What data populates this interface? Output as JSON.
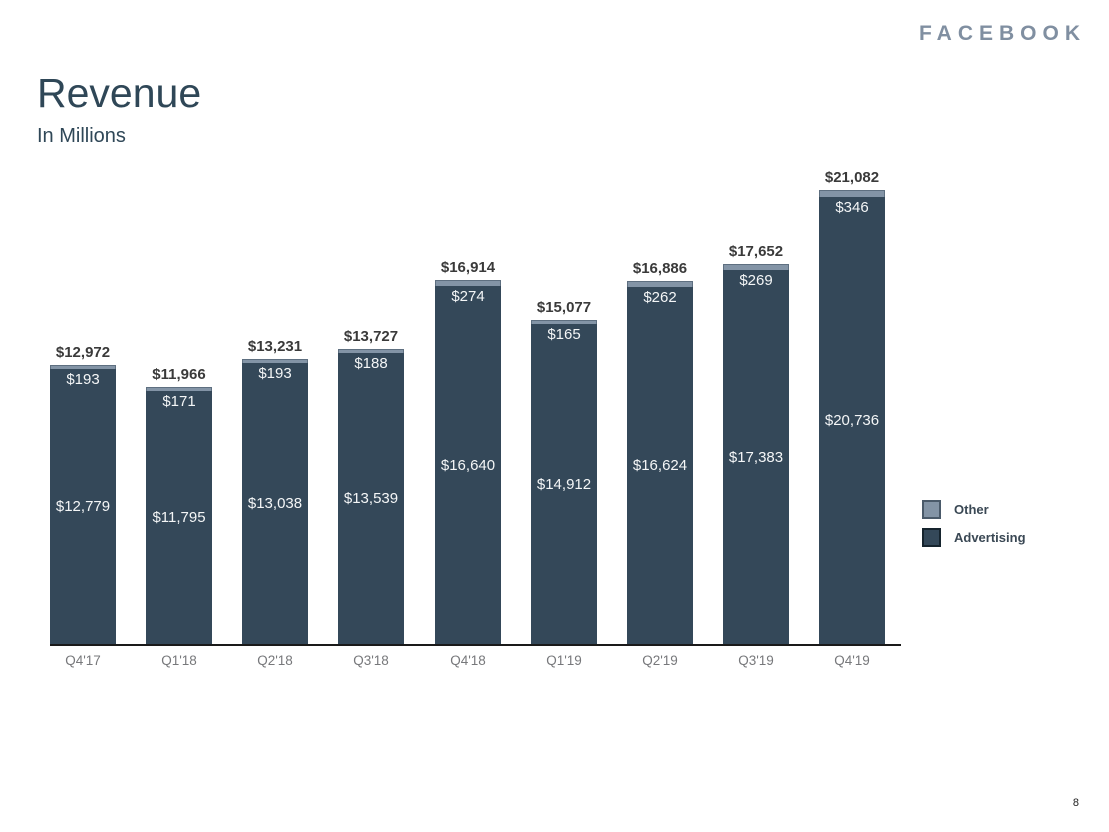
{
  "logo": "FACEBOOK",
  "header": {
    "title": "Revenue",
    "subtitle": "In Millions"
  },
  "page_number": "8",
  "colors": {
    "advertising": "#344859",
    "other": "#8394A6",
    "other_border": "#5E6F80",
    "advertising_swatch_border": "#16242E",
    "other_swatch_border": "#4A5A6A",
    "total_label_text": "#3A3A3A",
    "inside_label_text": "#F4F6F7",
    "axis_line": "#1A1A1A",
    "axis_label_text": "#77787B",
    "title_text": "#2F4757",
    "logo_text": "#808FA1"
  },
  "legend": [
    {
      "label": "Other",
      "color": "#8394A6",
      "border": "#4A5A6A"
    },
    {
      "label": "Advertising",
      "color": "#344859",
      "border": "#16242E"
    }
  ],
  "chart_data": {
    "type": "bar",
    "stacked": true,
    "title": "Revenue",
    "subtitle": "In Millions",
    "unit": "USD millions",
    "categories": [
      "Q4'17",
      "Q1'18",
      "Q2'18",
      "Q3'18",
      "Q4'18",
      "Q1'19",
      "Q2'19",
      "Q3'19",
      "Q4'19"
    ],
    "series": [
      {
        "name": "Advertising",
        "values": [
          12779,
          11795,
          13038,
          13539,
          16640,
          14912,
          16624,
          17383,
          20736
        ]
      },
      {
        "name": "Other",
        "values": [
          193,
          171,
          193,
          188,
          274,
          165,
          262,
          269,
          346
        ]
      }
    ],
    "totals": [
      12972,
      11966,
      13231,
      13727,
      16914,
      15077,
      16886,
      17652,
      21082
    ],
    "total_labels": [
      "$12,972",
      "$11,966",
      "$13,231",
      "$13,727",
      "$16,914",
      "$15,077",
      "$16,886",
      "$17,652",
      "$21,082"
    ],
    "other_labels": [
      "$193",
      "$171",
      "$193",
      "$188",
      "$274",
      "$165",
      "$262",
      "$269",
      "$346"
    ],
    "advertising_labels": [
      "$12,779",
      "$11,795",
      "$13,038",
      "$13,539",
      "$16,640",
      "$14,912",
      "$16,624",
      "$17,383",
      "$20,736"
    ],
    "legend_position": "right",
    "grid": false,
    "ylim": [
      0,
      21082
    ]
  }
}
